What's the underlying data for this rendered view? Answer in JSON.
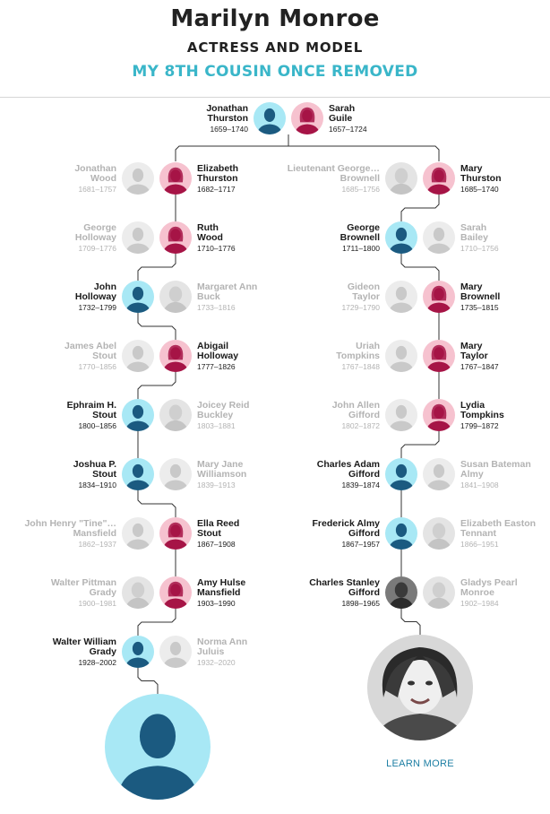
{
  "header": {
    "title": "Marilyn Monroe",
    "subtitle": "ACTRESS AND MODEL",
    "relation": "MY 8TH COUSIN ONCE REMOVED"
  },
  "colors": {
    "male_bg": "#a8e8f5",
    "male_fg": "#1b5a80",
    "female_bg": "#f6c2cf",
    "female_fg": "#a61446",
    "faded_bg": "#ececec",
    "faded_fg": "#c9c9c9",
    "accent": "#3ab6c9",
    "link": "#1c7ea3"
  },
  "root": {
    "left": {
      "name": "Jonathan\nThurston",
      "dates": "1659–1740",
      "gender": "male"
    },
    "right": {
      "name": "Sarah\nGuile",
      "dates": "1657–1724",
      "gender": "female"
    }
  },
  "left_branch": [
    {
      "spouse": {
        "name": "Jonathan\nWood",
        "dates": "1681–1757"
      },
      "ancestor": {
        "name": "Elizabeth\nThurston",
        "dates": "1682–1717",
        "gender": "female"
      }
    },
    {
      "spouse": {
        "name": "George\nHolloway",
        "dates": "1709–1776"
      },
      "ancestor": {
        "name": "Ruth\nWood",
        "dates": "1710–1776",
        "gender": "female"
      }
    },
    {
      "ancestor": {
        "name": "John\nHolloway",
        "dates": "1732–1799",
        "gender": "male"
      },
      "spouse": {
        "name": "Margaret Ann\nBuck",
        "dates": "1733–1816"
      }
    },
    {
      "spouse": {
        "name": "James Abel\nStout",
        "dates": "1770–1856"
      },
      "ancestor": {
        "name": "Abigail\nHolloway",
        "dates": "1777–1826",
        "gender": "female"
      }
    },
    {
      "ancestor": {
        "name": "Ephraim H.\nStout",
        "dates": "1800–1856",
        "gender": "male"
      },
      "spouse": {
        "name": "Joicey Reid\nBuckley",
        "dates": "1803–1881"
      }
    },
    {
      "ancestor": {
        "name": "Joshua P.\nStout",
        "dates": "1834–1910",
        "gender": "male"
      },
      "spouse": {
        "name": "Mary Jane\nWilliamson",
        "dates": "1839–1913"
      }
    },
    {
      "spouse": {
        "name": "John Henry \"Tine\"…\nMansfield",
        "dates": "1862–1937"
      },
      "ancestor": {
        "name": "Ella Reed\nStout",
        "dates": "1867–1908",
        "gender": "female"
      }
    },
    {
      "spouse": {
        "name": "Walter Pittman\nGrady",
        "dates": "1900–1981"
      },
      "ancestor": {
        "name": "Amy Hulse\nMansfield",
        "dates": "1903–1990",
        "gender": "female"
      }
    },
    {
      "ancestor": {
        "name": "Walter William\nGrady",
        "dates": "1928–2002",
        "gender": "male"
      },
      "spouse": {
        "name": "Norma Ann\nJuluis",
        "dates": "1932–2020"
      }
    }
  ],
  "right_branch": [
    {
      "spouse": {
        "name": "Lieutenant George…\nBrownell",
        "dates": "1685–1756"
      },
      "ancestor": {
        "name": "Mary\nThurston",
        "dates": "1685–1740",
        "gender": "female"
      }
    },
    {
      "ancestor": {
        "name": "George\nBrownell",
        "dates": "1711–1800",
        "gender": "male"
      },
      "spouse": {
        "name": "Sarah\nBailey",
        "dates": "1710–1756"
      }
    },
    {
      "spouse": {
        "name": "Gideon\nTaylor",
        "dates": "1729–1790"
      },
      "ancestor": {
        "name": "Mary\nBrownell",
        "dates": "1735–1815",
        "gender": "female"
      }
    },
    {
      "spouse": {
        "name": "Uriah\nTompkins",
        "dates": "1767–1848"
      },
      "ancestor": {
        "name": "Mary\nTaylor",
        "dates": "1767–1847",
        "gender": "female"
      }
    },
    {
      "spouse": {
        "name": "John Allen\nGifford",
        "dates": "1802–1872"
      },
      "ancestor": {
        "name": "Lydia\nTompkins",
        "dates": "1799–1872",
        "gender": "female"
      }
    },
    {
      "ancestor": {
        "name": "Charles Adam\nGifford",
        "dates": "1839–1874",
        "gender": "male"
      },
      "spouse": {
        "name": "Susan Bateman\nAlmy",
        "dates": "1841–1908"
      }
    },
    {
      "ancestor": {
        "name": "Frederick Almy\nGifford",
        "dates": "1867–1957",
        "gender": "male"
      },
      "spouse": {
        "name": "Elizabeth Easton\nTennant",
        "dates": "1866–1951"
      }
    },
    {
      "ancestor": {
        "name": "Charles Stanley\nGifford",
        "dates": "1898–1965",
        "gender": "male",
        "photo": true
      },
      "spouse": {
        "name": "Gladys Pearl\nMonroe",
        "dates": "1902–1984"
      }
    }
  ],
  "learn_more": "LEARN MORE"
}
